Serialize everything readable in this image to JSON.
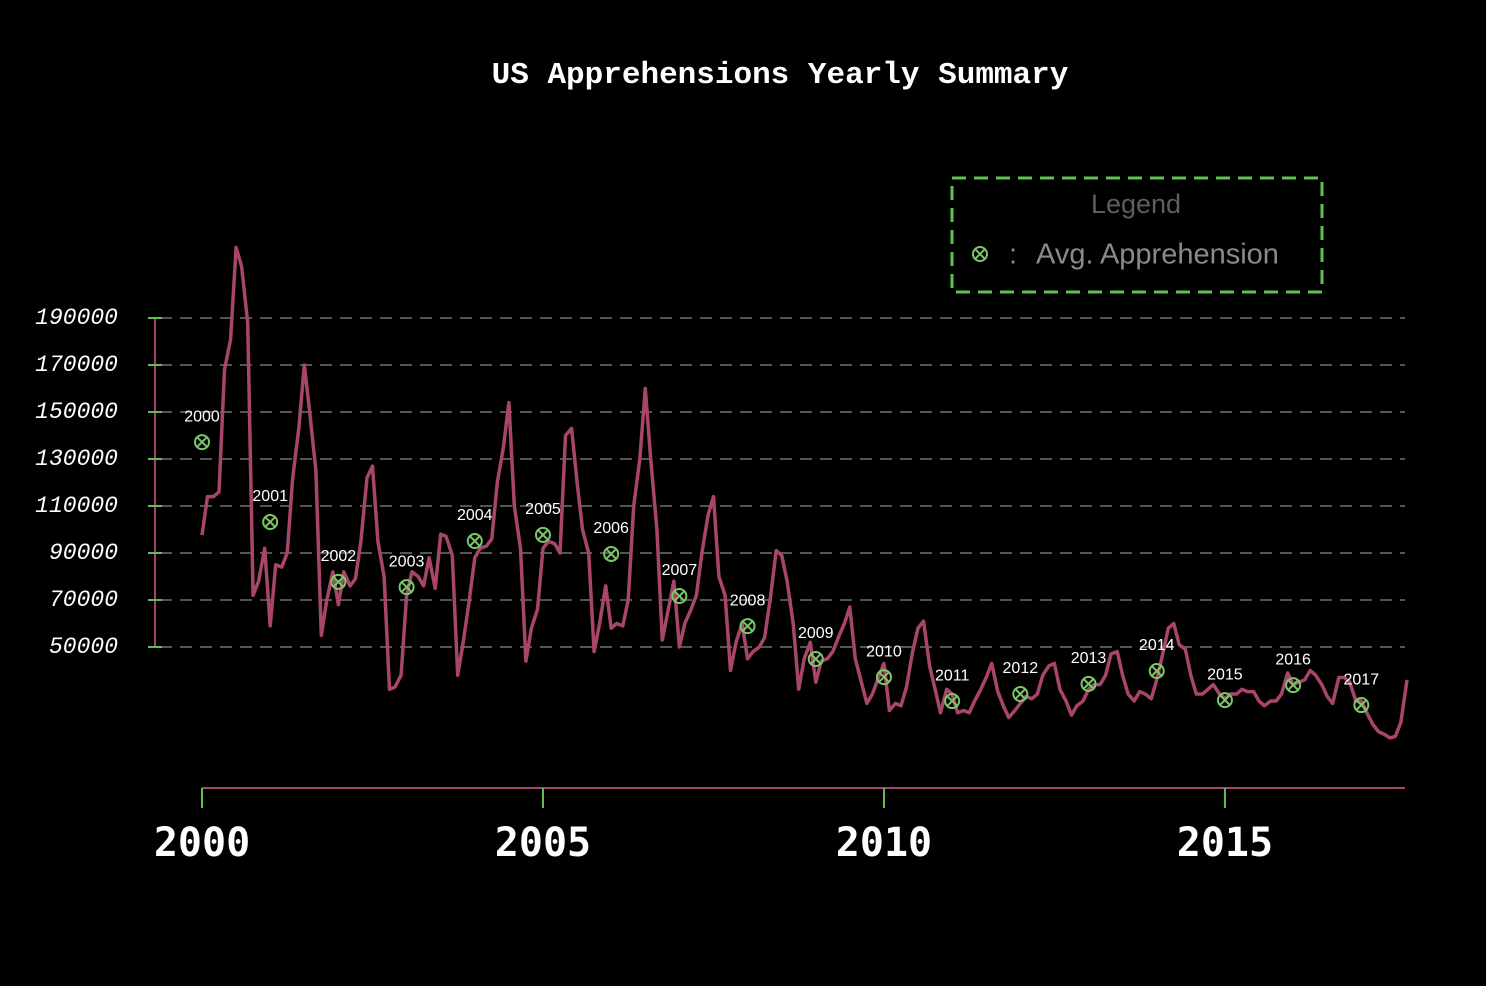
{
  "chart_data": {
    "type": "line",
    "title": "US Apprehensions Yearly Summary",
    "legend_title": "Legend",
    "legend_separator": ":",
    "xlim": [
      2000,
      2017.67
    ],
    "ylim": [
      -10000,
      260000
    ],
    "xticks": [
      2000,
      2005,
      2010,
      2015
    ],
    "yticks": [
      50000,
      70000,
      90000,
      110000,
      130000,
      150000,
      170000,
      190000
    ],
    "grid": true,
    "series": [
      {
        "color": "#a8456b",
        "x": [
          2000,
          2000.08,
          2000.17,
          2000.25,
          2000.33,
          2000.42,
          2000.5,
          2000.58,
          2000.67,
          2000.75,
          2000.83,
          2000.92,
          2001,
          2001.08,
          2001.17,
          2001.25,
          2001.33,
          2001.42,
          2001.5,
          2001.58,
          2001.67,
          2001.75,
          2001.83,
          2001.92,
          2002,
          2002.08,
          2002.17,
          2002.25,
          2002.33,
          2002.42,
          2002.5,
          2002.58,
          2002.67,
          2002.75,
          2002.83,
          2002.92,
          2003,
          2003.08,
          2003.17,
          2003.25,
          2003.33,
          2003.42,
          2003.5,
          2003.58,
          2003.67,
          2003.75,
          2003.83,
          2003.92,
          2004,
          2004.08,
          2004.17,
          2004.25,
          2004.33,
          2004.42,
          2004.5,
          2004.58,
          2004.67,
          2004.75,
          2004.83,
          2004.92,
          2005,
          2005.08,
          2005.17,
          2005.25,
          2005.33,
          2005.42,
          2005.5,
          2005.58,
          2005.67,
          2005.75,
          2005.83,
          2005.92,
          2006,
          2006.08,
          2006.17,
          2006.25,
          2006.33,
          2006.42,
          2006.5,
          2006.58,
          2006.67,
          2006.75,
          2006.83,
          2006.92,
          2007,
          2007.08,
          2007.17,
          2007.25,
          2007.33,
          2007.42,
          2007.5,
          2007.58,
          2007.67,
          2007.75,
          2007.83,
          2007.92,
          2008,
          2008.08,
          2008.17,
          2008.25,
          2008.33,
          2008.42,
          2008.5,
          2008.58,
          2008.67,
          2008.75,
          2008.83,
          2008.92,
          2009,
          2009.08,
          2009.17,
          2009.25,
          2009.33,
          2009.42,
          2009.5,
          2009.58,
          2009.67,
          2009.75,
          2009.83,
          2009.92,
          2010,
          2010.08,
          2010.17,
          2010.25,
          2010.33,
          2010.42,
          2010.5,
          2010.58,
          2010.67,
          2010.75,
          2010.83,
          2010.92,
          2011,
          2011.08,
          2011.17,
          2011.25,
          2011.33,
          2011.42,
          2011.5,
          2011.58,
          2011.67,
          2011.75,
          2011.83,
          2011.92,
          2012,
          2012.08,
          2012.17,
          2012.25,
          2012.33,
          2012.42,
          2012.5,
          2012.58,
          2012.67,
          2012.75,
          2012.83,
          2012.92,
          2013,
          2013.08,
          2013.17,
          2013.25,
          2013.33,
          2013.42,
          2013.5,
          2013.58,
          2013.67,
          2013.75,
          2013.83,
          2013.92,
          2014,
          2014.08,
          2014.17,
          2014.25,
          2014.33,
          2014.42,
          2014.5,
          2014.58,
          2014.67,
          2014.75,
          2014.83,
          2014.92,
          2015,
          2015.08,
          2015.17,
          2015.25,
          2015.33,
          2015.42,
          2015.5,
          2015.58,
          2015.67,
          2015.75,
          2015.83,
          2015.92,
          2016,
          2016.08,
          2016.17,
          2016.25,
          2016.33,
          2016.42,
          2016.5,
          2016.58,
          2016.67,
          2016.75,
          2016.83,
          2016.92,
          2017,
          2017.08,
          2017.17,
          2017.25,
          2017.33,
          2017.42,
          2017.5,
          2017.58,
          2017.67
        ],
        "values": [
          97600,
          114000,
          114000,
          116000,
          168000,
          181000,
          220000,
          212000,
          188000,
          72000,
          78000,
          92000,
          59000,
          85000,
          84000,
          90000,
          122000,
          143000,
          170000,
          150000,
          125000,
          55000,
          70000,
          82000,
          68000,
          82000,
          76000,
          79000,
          95000,
          122000,
          127000,
          95000,
          80000,
          32000,
          33000,
          38000,
          72000,
          82000,
          80000,
          76000,
          88000,
          75000,
          98000,
          97000,
          89000,
          38000,
          52000,
          70000,
          88000,
          92000,
          93000,
          96000,
          120000,
          135000,
          154000,
          110000,
          92000,
          44000,
          58000,
          66000,
          92000,
          95000,
          94000,
          90000,
          140000,
          143000,
          120000,
          100000,
          90000,
          48000,
          60000,
          76000,
          58000,
          60000,
          59000,
          70000,
          110000,
          130000,
          160000,
          130000,
          100000,
          53000,
          65000,
          78000,
          50000,
          60000,
          66000,
          72000,
          90000,
          106000,
          114000,
          80000,
          72000,
          40000,
          52000,
          60000,
          45000,
          48000,
          50000,
          54000,
          70000,
          91000,
          89000,
          78000,
          60000,
          32000,
          45000,
          52000,
          35000,
          44000,
          45000,
          48000,
          54000,
          60000,
          67000,
          45000,
          35000,
          26000,
          30000,
          37000,
          43000,
          23000,
          26000,
          25000,
          33000,
          48000,
          58000,
          61000,
          42000,
          32000,
          22000,
          32000,
          30000,
          22000,
          23000,
          22000,
          27000,
          32000,
          37000,
          43000,
          31000,
          25000,
          20000,
          23000,
          26000,
          29000,
          28000,
          30000,
          38000,
          42000,
          43000,
          32000,
          27000,
          21000,
          25000,
          27000,
          32000,
          34000,
          34000,
          38000,
          47000,
          48000,
          38000,
          30000,
          27000,
          31000,
          30000,
          28000,
          36000,
          46000,
          58000,
          60000,
          51000,
          49000,
          38000,
          30000,
          30000,
          32000,
          34000,
          30000,
          28000,
          30000,
          30000,
          32000,
          31000,
          31000,
          27000,
          25000,
          27000,
          27000,
          30000,
          39000,
          34000,
          35000,
          36000,
          40000,
          38000,
          34000,
          29000,
          26000,
          37000,
          37000,
          35000,
          27000,
          27000,
          22000,
          17000,
          14000,
          13000,
          11300,
          12000,
          18000,
          36000
        ]
      },
      {
        "name": "Avg. Apprehension",
        "color": "#7cc66a",
        "marker": "circle-x",
        "x": [
          2000,
          2001,
          2002,
          2003,
          2004,
          2005,
          2006,
          2007,
          2008,
          2009,
          2010,
          2011,
          2012,
          2013,
          2014,
          2015,
          2016,
          2017
        ],
        "values": [
          137200,
          103200,
          77700,
          75500,
          95100,
          97700,
          89600,
          71700,
          58900,
          44900,
          37200,
          27000,
          30000,
          34300,
          39800,
          27400,
          33800,
          25300
        ]
      }
    ]
  }
}
